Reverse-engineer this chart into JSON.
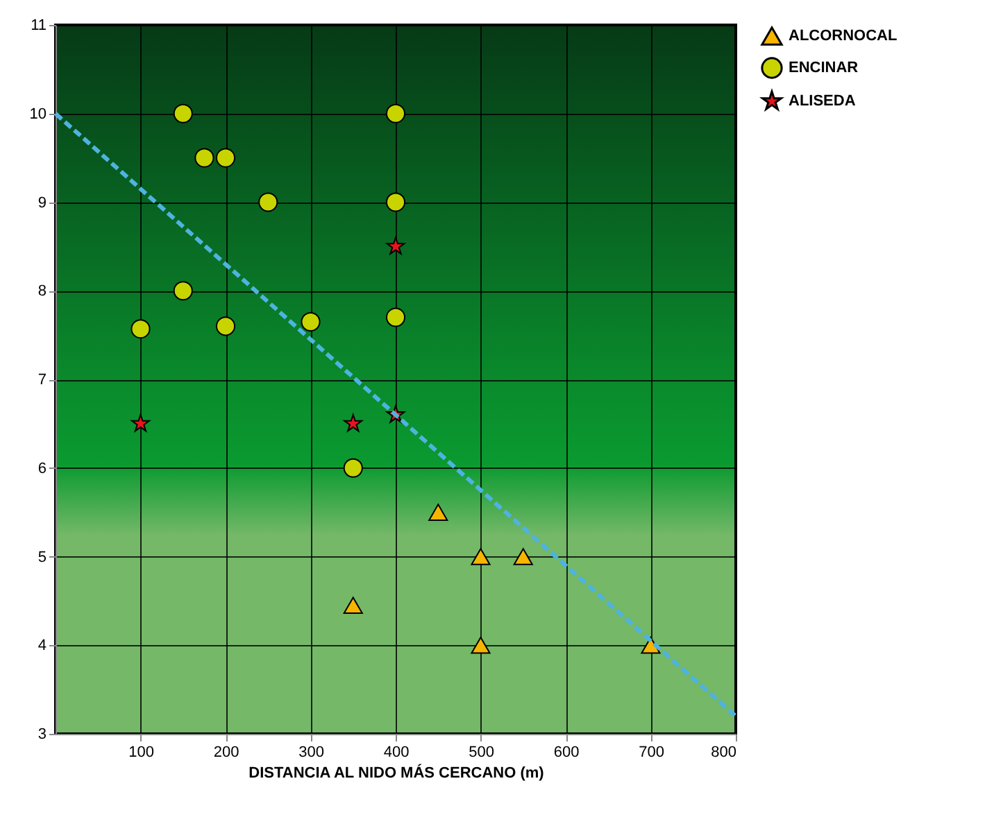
{
  "chart_data": {
    "type": "scatter",
    "xlabel": "DISTANCIA AL NIDO MÁS CERCANO (m)",
    "xlim": [
      0,
      800
    ],
    "xticks": [
      100,
      200,
      300,
      400,
      500,
      600,
      700,
      800
    ],
    "ylim": [
      3,
      11
    ],
    "yticks": [
      3,
      4,
      5,
      6,
      7,
      8,
      9,
      10,
      11
    ],
    "grid": true,
    "legend": "top right",
    "series": [
      {
        "name": "ALCORNOCAL",
        "color": "#f7b500",
        "marker": "triangle",
        "x": [
          450,
          500,
          550,
          350,
          500,
          700
        ],
        "values": [
          5.5,
          5.0,
          5.0,
          4.45,
          4.0,
          4.0
        ]
      },
      {
        "name": "ENCINAR",
        "color": "#c8d400",
        "marker": "circle",
        "x": [
          150,
          100,
          175,
          200,
          250,
          150,
          200,
          300,
          400,
          400,
          400,
          350
        ],
        "values": [
          10,
          7.57,
          9.5,
          9.5,
          9.0,
          8.0,
          7.6,
          7.65,
          10,
          9,
          7.7,
          6.0
        ]
      },
      {
        "name": "ALISEDA",
        "color": "#e8141c",
        "marker": "star",
        "x": [
          100,
          350,
          400,
          400
        ],
        "values": [
          6.5,
          6.5,
          6.6,
          8.5
        ]
      },
      {
        "type": "line",
        "color": "#4fb3e0",
        "line_style": "dashed",
        "x": [
          0,
          800
        ],
        "values": [
          10,
          3.2
        ]
      }
    ]
  }
}
